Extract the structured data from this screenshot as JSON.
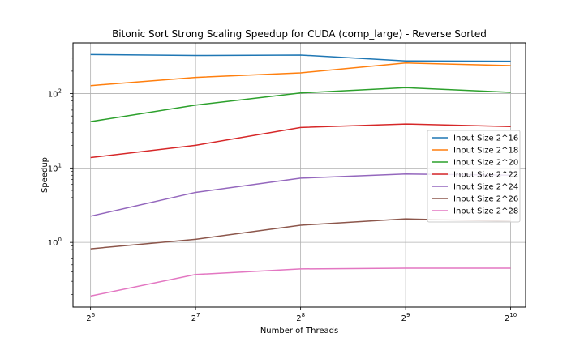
{
  "chart_data": {
    "type": "line",
    "title": "Bitonic Sort Strong Scaling Speedup for CUDA (comp_large) - Reverse Sorted",
    "xlabel": "Number of Threads",
    "ylabel": "Speedup",
    "x_scale": "log2",
    "y_scale": "log10",
    "x": [
      64,
      128,
      256,
      512,
      1024
    ],
    "x_tick_labels": [
      {
        "base": "2",
        "exp": "6"
      },
      {
        "base": "2",
        "exp": "7"
      },
      {
        "base": "2",
        "exp": "8"
      },
      {
        "base": "2",
        "exp": "9"
      },
      {
        "base": "2",
        "exp": "10"
      }
    ],
    "y_tick_labels": [
      {
        "base": "10",
        "exp": "0",
        "value": 1
      },
      {
        "base": "10",
        "exp": "1",
        "value": 10
      },
      {
        "base": "10",
        "exp": "2",
        "value": 100
      }
    ],
    "xlim": [
      57,
      1130
    ],
    "ylim": [
      0.135,
      480
    ],
    "grid": true,
    "legend_position": "center-right",
    "series": [
      {
        "name": "Input Size 2^16",
        "color": "#1f77b4",
        "values": [
          335,
          325,
          330,
          275,
          272
        ]
      },
      {
        "name": "Input Size 2^18",
        "color": "#ff7f0e",
        "values": [
          128,
          165,
          190,
          258,
          238
        ]
      },
      {
        "name": "Input Size 2^20",
        "color": "#2ca02c",
        "values": [
          42,
          70,
          102,
          120,
          104
        ]
      },
      {
        "name": "Input Size 2^22",
        "color": "#d62728",
        "values": [
          13.8,
          20.2,
          35,
          39,
          36
        ]
      },
      {
        "name": "Input Size 2^24",
        "color": "#9467bd",
        "values": [
          2.25,
          4.7,
          7.3,
          8.3,
          8.0
        ]
      },
      {
        "name": "Input Size 2^26",
        "color": "#8c564b",
        "values": [
          0.82,
          1.1,
          1.7,
          2.07,
          1.92
        ]
      },
      {
        "name": "Input Size 2^28",
        "color": "#e377c2",
        "values": [
          0.19,
          0.37,
          0.44,
          0.45,
          0.45
        ]
      }
    ]
  }
}
